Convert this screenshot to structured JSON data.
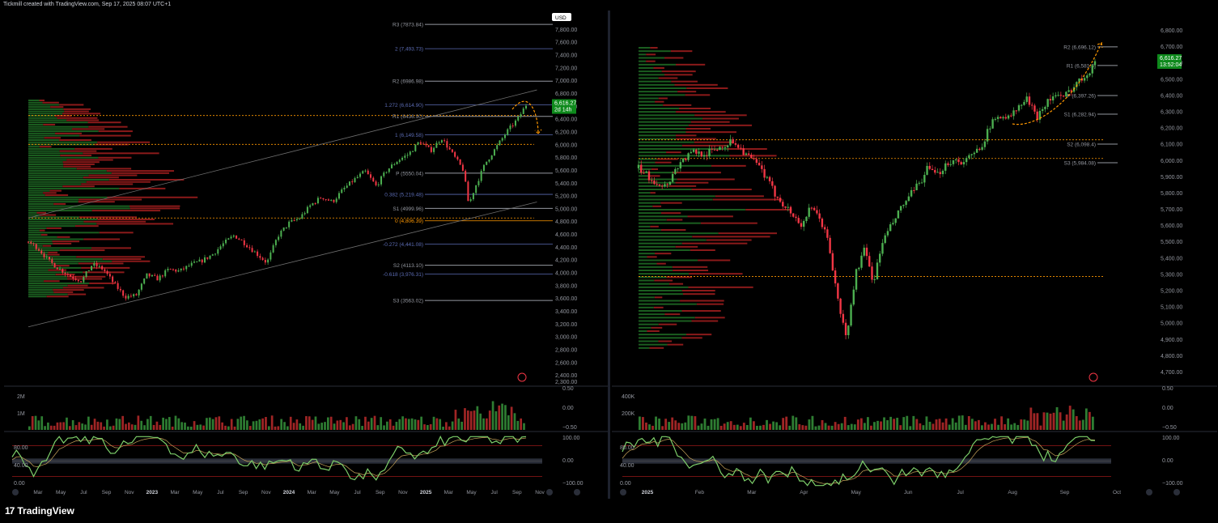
{
  "header": {
    "caption": "Tickmill created with TradingView.com, Sep 17, 2025 08:07 UTC+1"
  },
  "footer": {
    "brand": "TradingView",
    "mark": "17"
  },
  "colors": {
    "up": "#4caf50",
    "down": "#f23645",
    "pivot": "#9598a1",
    "fib": "#5b6bb3",
    "orange": "#ff9800",
    "price_bg": "#0e8a1c"
  },
  "chart_data": [
    {
      "type": "candlestick",
      "title": "",
      "currency": "USD",
      "ylim": [
        2300,
        7900
      ],
      "y_ticks": [
        "7,800.00",
        "7,600.00",
        "7,400.00",
        "7,200.00",
        "7,000.00",
        "6,800.00",
        "6,600.00",
        "6,400.00",
        "6,200.00",
        "6,000.00",
        "5,800.00",
        "5,600.00",
        "5,400.00",
        "5,200.00",
        "5,000.00",
        "4,800.00",
        "4,600.00",
        "4,400.00",
        "4,200.00",
        "4,000.00",
        "3,800.00",
        "3,600.00",
        "3,400.00",
        "3,200.00",
        "3,000.00",
        "2,800.00",
        "2,600.00",
        "2,400.00",
        "2,300.00"
      ],
      "x_ticks": [
        "Mar",
        "May",
        "Jul",
        "Sep",
        "Nov",
        "2023",
        "Mar",
        "May",
        "Jul",
        "Sep",
        "Nov",
        "2024",
        "Mar",
        "May",
        "Jul",
        "Sep",
        "Nov",
        "2025",
        "Mar",
        "May",
        "Jul",
        "Sep",
        "Nov"
      ],
      "close_path": [
        [
          2022.05,
          4480
        ],
        [
          2022.12,
          4380
        ],
        [
          2022.2,
          4180
        ],
        [
          2022.28,
          4050
        ],
        [
          2022.36,
          3940
        ],
        [
          2022.44,
          3870
        ],
        [
          2022.52,
          4130
        ],
        [
          2022.6,
          4050
        ],
        [
          2022.68,
          3820
        ],
        [
          2022.76,
          3620
        ],
        [
          2022.84,
          3640
        ],
        [
          2022.92,
          3960
        ],
        [
          2023.0,
          3900
        ],
        [
          2023.08,
          4050
        ],
        [
          2023.16,
          4020
        ],
        [
          2023.24,
          4120
        ],
        [
          2023.32,
          4180
        ],
        [
          2023.4,
          4280
        ],
        [
          2023.48,
          4450
        ],
        [
          2023.56,
          4580
        ],
        [
          2023.64,
          4450
        ],
        [
          2023.72,
          4300
        ],
        [
          2023.8,
          4150
        ],
        [
          2023.88,
          4570
        ],
        [
          2023.96,
          4770
        ],
        [
          2024.04,
          4850
        ],
        [
          2024.12,
          5050
        ],
        [
          2024.2,
          5180
        ],
        [
          2024.28,
          5100
        ],
        [
          2024.36,
          5300
        ],
        [
          2024.44,
          5450
        ],
        [
          2024.52,
          5580
        ],
        [
          2024.6,
          5350
        ],
        [
          2024.68,
          5600
        ],
        [
          2024.76,
          5750
        ],
        [
          2024.84,
          5850
        ],
        [
          2024.92,
          6050
        ],
        [
          2025.0,
          5900
        ],
        [
          2025.08,
          6100
        ],
        [
          2025.16,
          5850
        ],
        [
          2025.24,
          5600
        ],
        [
          2025.28,
          5050
        ],
        [
          2025.32,
          5300
        ],
        [
          2025.4,
          5700
        ],
        [
          2025.48,
          5950
        ],
        [
          2025.56,
          6200
        ],
        [
          2025.64,
          6400
        ],
        [
          2025.7,
          6616
        ]
      ],
      "levels": [
        {
          "label": "R3 (7873.84)",
          "value": 7873.84,
          "kind": "pivot"
        },
        {
          "label": "2 (7,493.73)",
          "value": 7493.73,
          "kind": "fib"
        },
        {
          "label": "R2 (6986.98)",
          "value": 6986.98,
          "kind": "pivot"
        },
        {
          "label": "1.272 (6,614.90)",
          "value": 6614.9,
          "kind": "fib"
        },
        {
          "label": "R1 (6436.90)",
          "value": 6436.9,
          "kind": "pivot"
        },
        {
          "label": "1 (6,149.58)",
          "value": 6149.58,
          "kind": "fib"
        },
        {
          "label": "P (5550.04)",
          "value": 5550.04,
          "kind": "pivot"
        },
        {
          "label": "0.382 (5,219.48)",
          "value": 5219.48,
          "kind": "fib"
        },
        {
          "label": "S1 (4999.96)",
          "value": 4999.96,
          "kind": "pivot"
        },
        {
          "label": "0 (4,806.39)",
          "value": 4806.39,
          "kind": "fib0"
        },
        {
          "label": "-0.272 (4,441.08)",
          "value": 4441.08,
          "kind": "fib"
        },
        {
          "label": "S2 (4113.10)",
          "value": 4113.1,
          "kind": "pivot"
        },
        {
          "label": "-0.618 (3,976.31)",
          "value": 3976.31,
          "kind": "fib"
        },
        {
          "label": "S3 (3563.02)",
          "value": 3563.02,
          "kind": "pivot"
        }
      ],
      "last_price": {
        "value": "6,616.27",
        "countdown": "2d 14h"
      },
      "volume": {
        "ticks": [
          "2M",
          "1M"
        ],
        "right_ticks": [
          "0.50",
          "0.00",
          "−0.50"
        ]
      },
      "oscillator": {
        "left_ticks": [
          "80.00",
          "40.00",
          "0.00"
        ],
        "right_ticks": [
          "100.00",
          "0.00",
          "−100.00"
        ]
      }
    },
    {
      "type": "candlestick",
      "title": "",
      "ylim": [
        4650,
        6870
      ],
      "y_ticks": [
        "6,800.00",
        "6,700.00",
        "6,600.00",
        "6,500.00",
        "6,400.00",
        "6,300.00",
        "6,200.00",
        "6,100.00",
        "6,000.00",
        "5,900.00",
        "5,800.00",
        "5,700.00",
        "5,600.00",
        "5,500.00",
        "5,400.00",
        "5,300.00",
        "5,200.00",
        "5,100.00",
        "5,000.00",
        "4,900.00",
        "4,800.00",
        "4,700.00"
      ],
      "x_ticks": [
        "2025",
        "Feb",
        "Mar",
        "Apr",
        "May",
        "Jun",
        "Jul",
        "Aug",
        "Sep",
        "Oct"
      ],
      "close_path": [
        [
          0,
          5950
        ],
        [
          3,
          5880
        ],
        [
          6,
          5840
        ],
        [
          9,
          5980
        ],
        [
          12,
          6050
        ],
        [
          15,
          6040
        ],
        [
          18,
          6080
        ],
        [
          21,
          6120
        ],
        [
          24,
          6030
        ],
        [
          27,
          5950
        ],
        [
          30,
          5800
        ],
        [
          33,
          5700
        ],
        [
          36,
          5600
        ],
        [
          38,
          5700
        ],
        [
          40,
          5650
        ],
        [
          42,
          5500
        ],
        [
          44,
          5150
        ],
        [
          46,
          4900
        ],
        [
          48,
          5300
        ],
        [
          50,
          5450
        ],
        [
          52,
          5250
        ],
        [
          54,
          5500
        ],
        [
          56,
          5600
        ],
        [
          58,
          5700
        ],
        [
          60,
          5780
        ],
        [
          62,
          5850
        ],
        [
          64,
          5950
        ],
        [
          66,
          5900
        ],
        [
          68,
          5980
        ],
        [
          70,
          6000
        ],
        [
          72,
          5990
        ],
        [
          74,
          6030
        ],
        [
          76,
          6100
        ],
        [
          78,
          6220
        ],
        [
          80,
          6280
        ],
        [
          82,
          6260
        ],
        [
          84,
          6320
        ],
        [
          86,
          6380
        ],
        [
          88,
          6260
        ],
        [
          90,
          6350
        ],
        [
          92,
          6400
        ],
        [
          94,
          6380
        ],
        [
          96,
          6450
        ],
        [
          98,
          6500
        ],
        [
          100,
          6560
        ],
        [
          101,
          6616
        ]
      ],
      "levels": [
        {
          "label": "R2 (6,696.12)",
          "value": 6696.12,
          "kind": "pivot"
        },
        {
          "label": "R1 (6,581.8)",
          "value": 6581.8,
          "kind": "pivot"
        },
        {
          "label": "P (6,397.26)",
          "value": 6397.26,
          "kind": "pivot"
        },
        {
          "label": "S1 (6,282.94)",
          "value": 6282.94,
          "kind": "pivot"
        },
        {
          "label": "S2 (6,098.4)",
          "value": 6098.4,
          "kind": "pivot"
        },
        {
          "label": "S3 (5,984.08)",
          "value": 5984.08,
          "kind": "pivot"
        }
      ],
      "last_price": {
        "value": "6,616.27",
        "countdown": "13:52:04"
      },
      "volume": {
        "ticks": [
          "400K",
          "200K"
        ],
        "right_ticks": [
          "0.50",
          "0.00",
          "−0.50"
        ]
      },
      "oscillator": {
        "left_ticks": [
          "80.00",
          "40.00",
          "0.00"
        ],
        "right_ticks": [
          "100.00",
          "0.00",
          "−100.00"
        ]
      }
    }
  ]
}
